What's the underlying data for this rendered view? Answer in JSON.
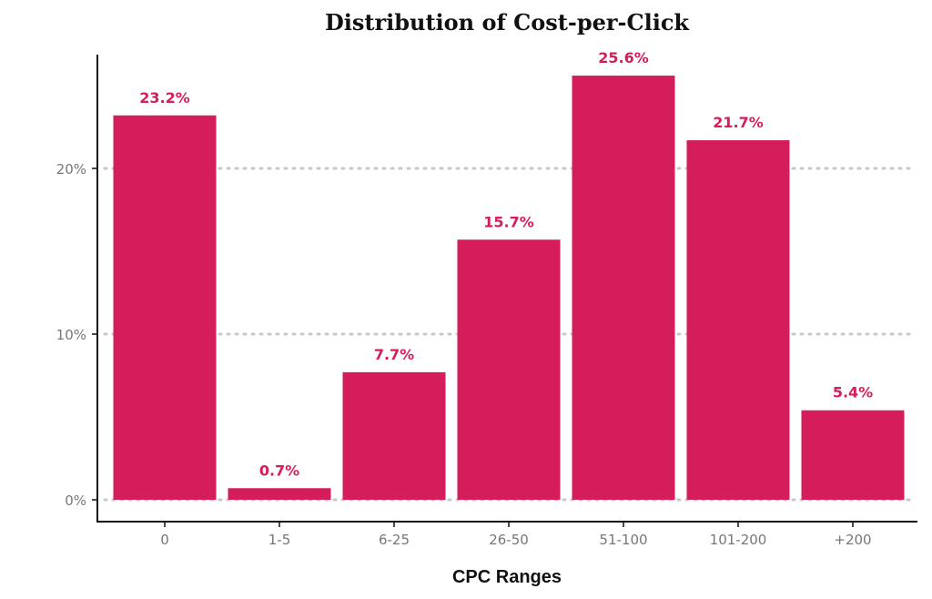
{
  "chart_data": {
    "type": "bar",
    "title": "Distribution of Cost-per-Click",
    "xlabel": "CPC Ranges",
    "ylabel": "",
    "categories": [
      "0",
      "1-5",
      "6-25",
      "26-50",
      "51-100",
      "101-200",
      "+200"
    ],
    "values": [
      23.2,
      0.7,
      7.7,
      15.7,
      25.6,
      21.7,
      5.4
    ],
    "data_labels": [
      "23.2%",
      "0.7%",
      "7.7%",
      "15.7%",
      "25.6%",
      "21.7%",
      "5.4%"
    ],
    "y_ticks": [
      0,
      10,
      20
    ],
    "y_tick_labels": [
      "0%",
      "10%",
      "20%"
    ],
    "ylim": [
      0,
      28
    ],
    "grid": "horizontal dotted",
    "legend": "none",
    "bar_color": "#d51d5b",
    "grid_color": "#c8c8c8",
    "axis_color": "#111111"
  }
}
